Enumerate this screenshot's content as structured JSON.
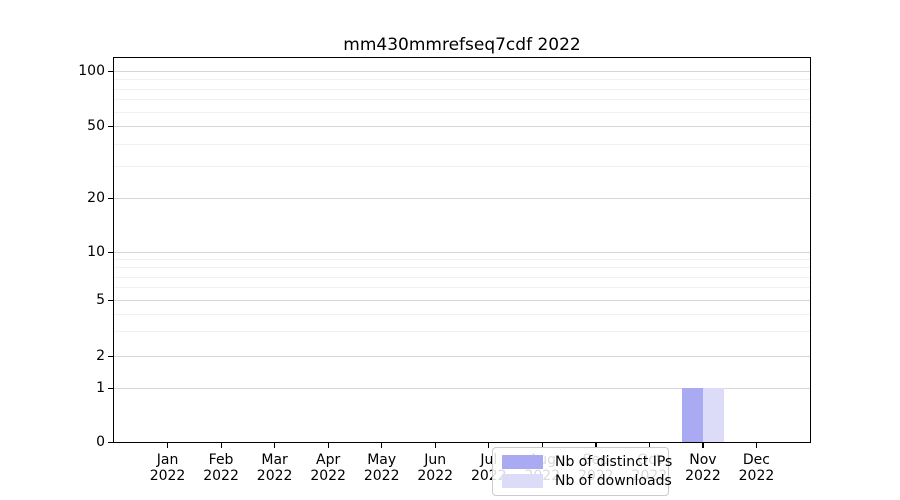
{
  "figure": {
    "background": "#ffffff"
  },
  "chart_data": {
    "type": "bar",
    "title": "mm430mmrefseq7cdf 2022",
    "categories": [
      "Jan 2022",
      "Feb 2022",
      "Mar 2022",
      "Apr 2022",
      "May 2022",
      "Jun 2022",
      "Jul 2022",
      "Aug 2022",
      "Sep 2022",
      "Oct 2022",
      "Nov 2022",
      "Dec 2022"
    ],
    "series": [
      {
        "name": "Nb of distinct IPs",
        "color": "#aaaaf2",
        "values": [
          0,
          0,
          0,
          0,
          0,
          0,
          0,
          0,
          0,
          0,
          1,
          0
        ]
      },
      {
        "name": "Nb of downloads",
        "color": "#dcdcf8",
        "values": [
          0,
          0,
          0,
          0,
          0,
          0,
          0,
          0,
          0,
          0,
          1,
          0
        ]
      }
    ],
    "xlabel": "",
    "ylabel": "",
    "yscale": "symlog",
    "ylim": [
      0,
      118
    ],
    "y_major_ticks": [
      0,
      1,
      2,
      5,
      10,
      20,
      50,
      100
    ],
    "y_minor_ticks": [
      3,
      4,
      6,
      7,
      8,
      9,
      30,
      40,
      60,
      70,
      80,
      90
    ],
    "grid": "horizontal",
    "legend_position": "lower-center-inside"
  }
}
